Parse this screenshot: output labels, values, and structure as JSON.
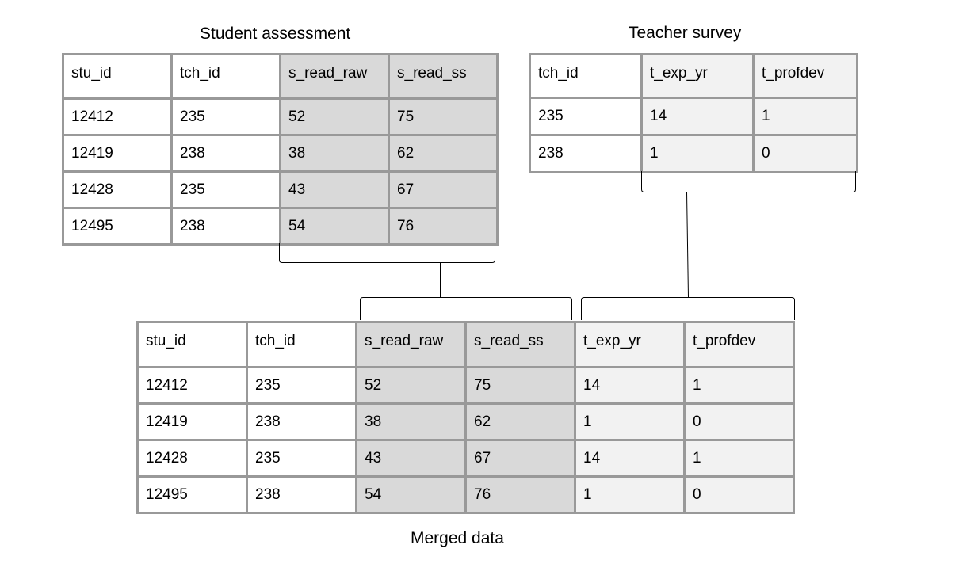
{
  "student_assessment": {
    "title": "Student assessment",
    "headers": [
      "stu_id",
      "tch_id",
      "s_read_raw",
      "s_read_ss"
    ],
    "rows": [
      [
        "12412",
        "235",
        "52",
        "75"
      ],
      [
        "12419",
        "238",
        "38",
        "62"
      ],
      [
        "12428",
        "235",
        "43",
        "67"
      ],
      [
        "12495",
        "238",
        "54",
        "76"
      ]
    ]
  },
  "teacher_survey": {
    "title": "Teacher survey",
    "headers": [
      "tch_id",
      "t_exp_yr",
      "t_profdev"
    ],
    "rows": [
      [
        "235",
        "14",
        "1"
      ],
      [
        "238",
        "1",
        "0"
      ]
    ]
  },
  "merged": {
    "title": "Merged data",
    "headers": [
      "stu_id",
      "tch_id",
      "s_read_raw",
      "s_read_ss",
      "t_exp_yr",
      "t_profdev"
    ],
    "rows": [
      [
        "12412",
        "235",
        "52",
        "75",
        "14",
        "1"
      ],
      [
        "12419",
        "238",
        "38",
        "62",
        "1",
        "0"
      ],
      [
        "12428",
        "235",
        "43",
        "67",
        "14",
        "1"
      ],
      [
        "12495",
        "238",
        "54",
        "76",
        "1",
        "0"
      ]
    ]
  },
  "colors": {
    "border": "#999999",
    "student_fill": "#d9d9d9",
    "teacher_fill": "#f2f2f2",
    "connector": "#000000"
  }
}
